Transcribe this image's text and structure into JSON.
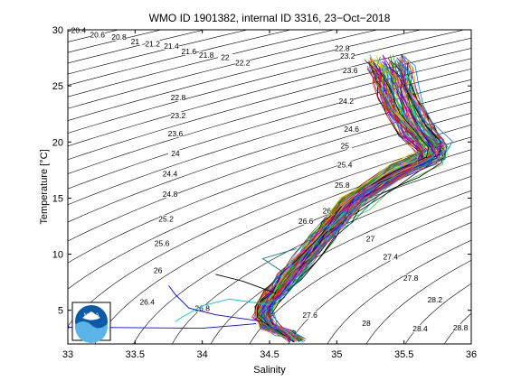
{
  "chart_data": {
    "type": "scatter",
    "title": "WMO ID 1901382, internal ID 3316, 23−Oct−2018",
    "xlabel": "Salinity",
    "ylabel": "Temperature [°C]",
    "xlim": [
      33,
      36
    ],
    "ylim": [
      2,
      30
    ],
    "x_ticks": [
      "33",
      "33.5",
      "34",
      "34.5",
      "35",
      "35.5",
      "36"
    ],
    "y_ticks": [
      "5",
      "10",
      "15",
      "20",
      "25",
      "30"
    ],
    "isopycnal_labels": [
      {
        "label": "20.4",
        "s": 33.08,
        "t": 29.8
      },
      {
        "label": "20.6",
        "s": 33.22,
        "t": 29.4
      },
      {
        "label": "20.8",
        "s": 33.38,
        "t": 29.2
      },
      {
        "label": "21",
        "s": 33.5,
        "t": 28.8
      },
      {
        "label": "21.2",
        "s": 33.63,
        "t": 28.6
      },
      {
        "label": "21.4",
        "s": 33.77,
        "t": 28.4
      },
      {
        "label": "21.6",
        "s": 33.9,
        "t": 27.9
      },
      {
        "label": "21.8",
        "s": 34.03,
        "t": 27.6
      },
      {
        "label": "22",
        "s": 34.17,
        "t": 27.4
      },
      {
        "label": "22.2",
        "s": 34.3,
        "t": 26.9
      },
      {
        "label": "22.8",
        "s": 33.82,
        "t": 23.8
      },
      {
        "label": "23.2",
        "s": 33.82,
        "t": 22.2
      },
      {
        "label": "23.6",
        "s": 33.8,
        "t": 20.6
      },
      {
        "label": "24",
        "s": 33.8,
        "t": 18.8
      },
      {
        "label": "24.4",
        "s": 33.76,
        "t": 17.0
      },
      {
        "label": "24.8",
        "s": 33.76,
        "t": 15.2
      },
      {
        "label": "25.2",
        "s": 33.73,
        "t": 13.0
      },
      {
        "label": "25.6",
        "s": 33.7,
        "t": 10.8
      },
      {
        "label": "26",
        "s": 33.67,
        "t": 8.4
      },
      {
        "label": "26.4",
        "s": 33.59,
        "t": 5.6
      },
      {
        "label": "26.8",
        "s": 34.0,
        "t": 5.0
      },
      {
        "label": "27.6",
        "s": 34.8,
        "t": 4.4
      },
      {
        "label": "28",
        "s": 35.22,
        "t": 3.7
      },
      {
        "label": "28.4",
        "s": 35.62,
        "t": 3.2
      },
      {
        "label": "28.8",
        "s": 35.92,
        "t": 3.3
      },
      {
        "label": "28.2",
        "s": 35.73,
        "t": 5.8
      },
      {
        "label": "27.8",
        "s": 35.55,
        "t": 7.7
      },
      {
        "label": "27.4",
        "s": 35.4,
        "t": 9.6
      },
      {
        "label": "27",
        "s": 35.25,
        "t": 11.2
      },
      {
        "label": "26.6",
        "s": 34.77,
        "t": 12.8
      },
      {
        "label": "26.2",
        "s": 34.95,
        "t": 13.7
      },
      {
        "label": "25.8",
        "s": 35.04,
        "t": 16.0
      },
      {
        "label": "25.4",
        "s": 35.06,
        "t": 17.8
      },
      {
        "label": "25",
        "s": 35.06,
        "t": 19.5
      },
      {
        "label": "24.6",
        "s": 35.11,
        "t": 21.0
      },
      {
        "label": "24.2",
        "s": 35.07,
        "t": 23.5
      },
      {
        "label": "23.6",
        "s": 35.1,
        "t": 26.2
      },
      {
        "label": "23.2",
        "s": 35.08,
        "t": 27.5
      },
      {
        "label": "22.8",
        "s": 35.04,
        "t": 28.2
      }
    ],
    "profile_path": [
      {
        "s": 34.7,
        "t": 2.4
      },
      {
        "s": 34.62,
        "t": 3.0
      },
      {
        "s": 34.5,
        "t": 3.6
      },
      {
        "s": 34.45,
        "t": 4.5
      },
      {
        "s": 34.48,
        "t": 5.5
      },
      {
        "s": 34.55,
        "t": 6.5
      },
      {
        "s": 34.65,
        "t": 8.0
      },
      {
        "s": 34.78,
        "t": 9.8
      },
      {
        "s": 34.9,
        "t": 11.5
      },
      {
        "s": 35.0,
        "t": 13.0
      },
      {
        "s": 35.12,
        "t": 14.5
      },
      {
        "s": 35.3,
        "t": 16.0
      },
      {
        "s": 35.5,
        "t": 17.5
      },
      {
        "s": 35.7,
        "t": 18.6
      },
      {
        "s": 35.72,
        "t": 19.5
      },
      {
        "s": 35.6,
        "t": 21.0
      },
      {
        "s": 35.52,
        "t": 22.5
      },
      {
        "s": 35.45,
        "t": 24.5
      },
      {
        "s": 35.42,
        "t": 26.0
      },
      {
        "s": 35.38,
        "t": 27.0
      }
    ],
    "profile_count": 90,
    "marker_point": {
      "s": 33.0,
      "t": 3.5
    },
    "grid": false,
    "legend": "none",
    "logo": "noaa-logo",
    "logo_text": "NOAA"
  }
}
